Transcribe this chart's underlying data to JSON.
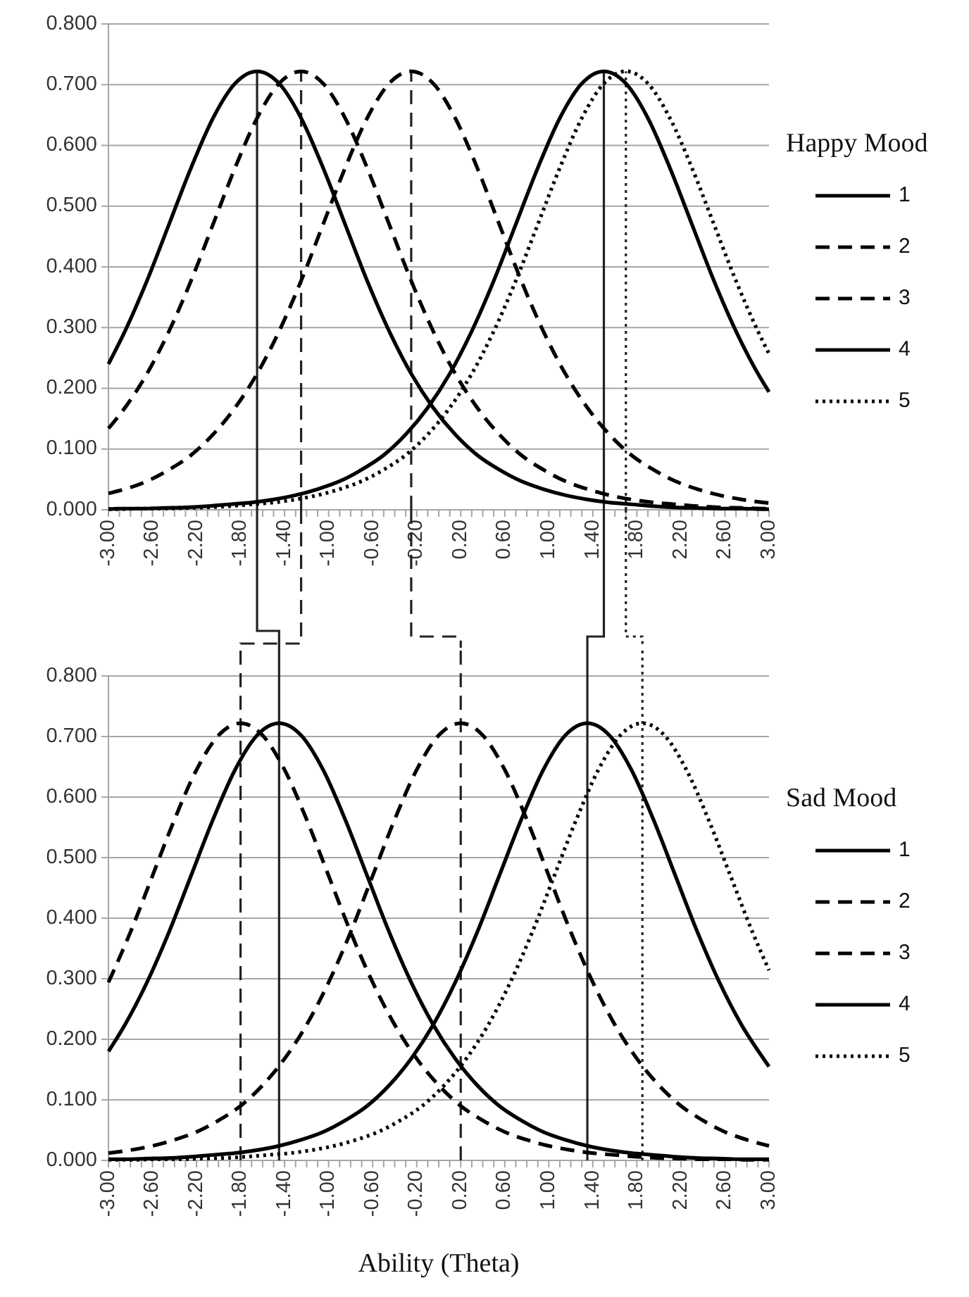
{
  "chart_data": [
    {
      "type": "line",
      "legend_title": "Happy Mood",
      "legend": "right",
      "grid": "y",
      "xlim": [
        -3,
        3
      ],
      "ylim": [
        0,
        0.8
      ],
      "yticks": [
        {
          "value": 0,
          "label": "0.000"
        },
        {
          "value": 0.1,
          "label": "0.100"
        },
        {
          "value": 0.2,
          "label": "0.200"
        },
        {
          "value": 0.3,
          "label": "0.300"
        },
        {
          "value": 0.4,
          "label": "0.400"
        },
        {
          "value": 0.5,
          "label": "0.500"
        },
        {
          "value": 0.6,
          "label": "0.600"
        },
        {
          "value": 0.7,
          "label": "0.700"
        },
        {
          "value": 0.8,
          "label": "0.800"
        }
      ],
      "xticks": [
        {
          "value": -3,
          "label": "-3.00"
        },
        {
          "value": -2.9,
          "label": null
        },
        {
          "value": -2.8,
          "label": null
        },
        {
          "value": -2.7,
          "label": null
        },
        {
          "value": -2.6,
          "label": "-2.60"
        },
        {
          "value": -2.5,
          "label": null
        },
        {
          "value": -2.4,
          "label": null
        },
        {
          "value": -2.3,
          "label": null
        },
        {
          "value": -2.2,
          "label": "-2.20"
        },
        {
          "value": -2.1,
          "label": null
        },
        {
          "value": -2,
          "label": null
        },
        {
          "value": -1.9,
          "label": null
        },
        {
          "value": -1.8,
          "label": "-1.80"
        },
        {
          "value": -1.7,
          "label": null
        },
        {
          "value": -1.6,
          "label": null
        },
        {
          "value": -1.5,
          "label": null
        },
        {
          "value": -1.4,
          "label": "-1.40"
        },
        {
          "value": -1.3,
          "label": null
        },
        {
          "value": -1.2,
          "label": null
        },
        {
          "value": -1.1,
          "label": null
        },
        {
          "value": -1,
          "label": "-1.00"
        },
        {
          "value": -0.9,
          "label": null
        },
        {
          "value": -0.8,
          "label": null
        },
        {
          "value": -0.7,
          "label": null
        },
        {
          "value": -0.6,
          "label": "-0.60"
        },
        {
          "value": -0.5,
          "label": null
        },
        {
          "value": -0.4,
          "label": null
        },
        {
          "value": -0.3,
          "label": null
        },
        {
          "value": -0.2,
          "label": "-0.20"
        },
        {
          "value": -0.1,
          "label": null
        },
        {
          "value": 0,
          "label": null
        },
        {
          "value": 0.1,
          "label": null
        },
        {
          "value": 0.2,
          "label": "0.20"
        },
        {
          "value": 0.3,
          "label": null
        },
        {
          "value": 0.4,
          "label": null
        },
        {
          "value": 0.5,
          "label": null
        },
        {
          "value": 0.6,
          "label": "0.60"
        },
        {
          "value": 0.7,
          "label": null
        },
        {
          "value": 0.8,
          "label": null
        },
        {
          "value": 0.9,
          "label": null
        },
        {
          "value": 1,
          "label": "1.00"
        },
        {
          "value": 1.1,
          "label": null
        },
        {
          "value": 1.2,
          "label": null
        },
        {
          "value": 1.3,
          "label": null
        },
        {
          "value": 1.4,
          "label": "1.40"
        },
        {
          "value": 1.5,
          "label": null
        },
        {
          "value": 1.6,
          "label": null
        },
        {
          "value": 1.7,
          "label": null
        },
        {
          "value": 1.8,
          "label": "1.80"
        },
        {
          "value": 1.9,
          "label": null
        },
        {
          "value": 2,
          "label": null
        },
        {
          "value": 2.1,
          "label": null
        },
        {
          "value": 2.2,
          "label": "2.20"
        },
        {
          "value": 2.3,
          "label": null
        },
        {
          "value": 2.4,
          "label": null
        },
        {
          "value": 2.5,
          "label": null
        },
        {
          "value": 2.6,
          "label": "2.60"
        },
        {
          "value": 2.7,
          "label": null
        },
        {
          "value": 2.8,
          "label": null
        },
        {
          "value": 2.9,
          "label": null
        },
        {
          "value": 3,
          "label": "3.00"
        }
      ],
      "series": [
        {
          "name": "1",
          "color": "#000000",
          "line_style": "solid",
          "x": [
            -3,
            -2.85,
            -2.65,
            -2.45,
            -2.25,
            -2.05,
            -1.85,
            -1.65,
            -1.45,
            -1.25,
            -1.05,
            -0.85,
            -0.65,
            -0.45,
            -0.25,
            -0.05,
            0.15,
            0.35,
            0.55,
            0.75,
            0.95,
            1.15,
            1.35,
            1.55,
            1.75,
            1.95,
            2.15,
            2.35,
            2.55,
            2.75,
            2.95,
            3
          ],
          "values": [
            0.24,
            0.294,
            0.377,
            0.47,
            0.563,
            0.645,
            0.702,
            0.722,
            0.702,
            0.645,
            0.563,
            0.47,
            0.377,
            0.294,
            0.224,
            0.168,
            0.124,
            0.09,
            0.066,
            0.047,
            0.034,
            0.024,
            0.017,
            0.012,
            0.009,
            0.006,
            0.004,
            0.003,
            0.002,
            0.002,
            0.001,
            0.001
          ]
        },
        {
          "name": "2",
          "color": "#000000",
          "line_style": "dashed",
          "x": [
            -3,
            -2.85,
            -2.65,
            -2.45,
            -2.25,
            -2.05,
            -1.85,
            -1.65,
            -1.45,
            -1.25,
            -1.05,
            -0.85,
            -0.65,
            -0.45,
            -0.25,
            -0.05,
            0.15,
            0.35,
            0.55,
            0.75,
            0.95,
            1.15,
            1.35,
            1.55,
            1.75,
            1.95,
            2.15,
            2.35,
            2.55,
            2.75,
            2.95,
            3
          ],
          "values": [
            0.134,
            0.168,
            0.224,
            0.294,
            0.377,
            0.47,
            0.563,
            0.645,
            0.702,
            0.722,
            0.702,
            0.645,
            0.563,
            0.47,
            0.377,
            0.294,
            0.224,
            0.168,
            0.124,
            0.09,
            0.066,
            0.047,
            0.034,
            0.024,
            0.017,
            0.012,
            0.009,
            0.006,
            0.004,
            0.003,
            0.002,
            0.002
          ]
        },
        {
          "name": "3",
          "color": "#000000",
          "line_style": "dashed",
          "x": [
            -3,
            -2.85,
            -2.65,
            -2.45,
            -2.25,
            -2.05,
            -1.85,
            -1.65,
            -1.45,
            -1.25,
            -1.05,
            -0.85,
            -0.65,
            -0.45,
            -0.25,
            -0.05,
            0.15,
            0.35,
            0.55,
            0.75,
            0.95,
            1.15,
            1.35,
            1.55,
            1.75,
            1.95,
            2.15,
            2.35,
            2.55,
            2.75,
            2.95,
            3
          ],
          "values": [
            0.027,
            0.034,
            0.047,
            0.066,
            0.09,
            0.124,
            0.168,
            0.224,
            0.294,
            0.377,
            0.47,
            0.563,
            0.645,
            0.702,
            0.722,
            0.702,
            0.645,
            0.563,
            0.47,
            0.377,
            0.294,
            0.224,
            0.168,
            0.124,
            0.09,
            0.066,
            0.047,
            0.034,
            0.024,
            0.017,
            0.012,
            0.011
          ]
        },
        {
          "name": "4",
          "color": "#000000",
          "line_style": "solid",
          "x": [
            -3,
            -2.9,
            -2.7,
            -2.5,
            -2.3,
            -2.1,
            -1.9,
            -1.7,
            -1.5,
            -1.3,
            -1.1,
            -0.9,
            -0.7,
            -0.5,
            -0.3,
            -0.1,
            0.1,
            0.3,
            0.5,
            0.7,
            0.9,
            1.1,
            1.3,
            1.5,
            1.7,
            1.9,
            2.1,
            2.3,
            2.5,
            2.7,
            2.9,
            3
          ],
          "values": [
            0.001,
            0.002,
            0.002,
            0.003,
            0.004,
            0.006,
            0.009,
            0.012,
            0.017,
            0.024,
            0.034,
            0.047,
            0.066,
            0.09,
            0.124,
            0.168,
            0.224,
            0.294,
            0.377,
            0.47,
            0.563,
            0.645,
            0.702,
            0.722,
            0.702,
            0.645,
            0.563,
            0.47,
            0.377,
            0.294,
            0.224,
            0.194
          ]
        },
        {
          "name": "5",
          "color": "#000000",
          "line_style": "dotted",
          "x": [
            -3,
            -2.9,
            -2.7,
            -2.5,
            -2.3,
            -2.1,
            -1.9,
            -1.7,
            -1.5,
            -1.3,
            -1.1,
            -0.9,
            -0.7,
            -0.5,
            -0.3,
            -0.1,
            0.1,
            0.3,
            0.5,
            0.7,
            0.9,
            1.1,
            1.3,
            1.5,
            1.7,
            1.9,
            2.1,
            2.3,
            2.5,
            2.7,
            2.9,
            3
          ],
          "values": [
            0.001,
            0.001,
            0.002,
            0.002,
            0.003,
            0.004,
            0.006,
            0.009,
            0.012,
            0.017,
            0.024,
            0.034,
            0.047,
            0.066,
            0.09,
            0.124,
            0.168,
            0.224,
            0.294,
            0.377,
            0.47,
            0.563,
            0.645,
            0.702,
            0.722,
            0.702,
            0.645,
            0.563,
            0.47,
            0.377,
            0.294,
            0.257
          ]
        }
      ],
      "ref_lines": [
        {
          "axis": "x",
          "value": -1.65,
          "line_style": "solid"
        },
        {
          "axis": "x",
          "value": -1.25,
          "line_style": "dashed"
        },
        {
          "axis": "x",
          "value": -0.25,
          "line_style": "dashed"
        },
        {
          "axis": "x",
          "value": 1.5,
          "line_style": "solid"
        },
        {
          "axis": "x",
          "value": 1.7,
          "line_style": "dotted"
        }
      ]
    },
    {
      "type": "line",
      "legend_title": "Sad Mood",
      "legend": "right",
      "grid": "y",
      "xlabel": "Ability (Theta)",
      "xlim": [
        -3,
        3
      ],
      "ylim": [
        0,
        0.8
      ],
      "yticks": [
        {
          "value": 0,
          "label": "0.000"
        },
        {
          "value": 0.1,
          "label": "0.100"
        },
        {
          "value": 0.2,
          "label": "0.200"
        },
        {
          "value": 0.3,
          "label": "0.300"
        },
        {
          "value": 0.4,
          "label": "0.400"
        },
        {
          "value": 0.5,
          "label": "0.500"
        },
        {
          "value": 0.6,
          "label": "0.600"
        },
        {
          "value": 0.7,
          "label": "0.700"
        },
        {
          "value": 0.8,
          "label": "0.800"
        }
      ],
      "xticks": [
        {
          "value": -3,
          "label": "-3.00"
        },
        {
          "value": -2.9,
          "label": null
        },
        {
          "value": -2.8,
          "label": null
        },
        {
          "value": -2.7,
          "label": null
        },
        {
          "value": -2.6,
          "label": "-2.60"
        },
        {
          "value": -2.5,
          "label": null
        },
        {
          "value": -2.4,
          "label": null
        },
        {
          "value": -2.3,
          "label": null
        },
        {
          "value": -2.2,
          "label": "-2.20"
        },
        {
          "value": -2.1,
          "label": null
        },
        {
          "value": -2,
          "label": null
        },
        {
          "value": -1.9,
          "label": null
        },
        {
          "value": -1.8,
          "label": "-1.80"
        },
        {
          "value": -1.7,
          "label": null
        },
        {
          "value": -1.6,
          "label": null
        },
        {
          "value": -1.5,
          "label": null
        },
        {
          "value": -1.4,
          "label": "-1.40"
        },
        {
          "value": -1.3,
          "label": null
        },
        {
          "value": -1.2,
          "label": null
        },
        {
          "value": -1.1,
          "label": null
        },
        {
          "value": -1,
          "label": "-1.00"
        },
        {
          "value": -0.9,
          "label": null
        },
        {
          "value": -0.8,
          "label": null
        },
        {
          "value": -0.7,
          "label": null
        },
        {
          "value": -0.6,
          "label": "-0.60"
        },
        {
          "value": -0.5,
          "label": null
        },
        {
          "value": -0.4,
          "label": null
        },
        {
          "value": -0.3,
          "label": null
        },
        {
          "value": -0.2,
          "label": "-0.20"
        },
        {
          "value": -0.1,
          "label": null
        },
        {
          "value": 0,
          "label": null
        },
        {
          "value": 0.1,
          "label": null
        },
        {
          "value": 0.2,
          "label": "0.20"
        },
        {
          "value": 0.3,
          "label": null
        },
        {
          "value": 0.4,
          "label": null
        },
        {
          "value": 0.5,
          "label": null
        },
        {
          "value": 0.6,
          "label": "0.60"
        },
        {
          "value": 0.7,
          "label": null
        },
        {
          "value": 0.8,
          "label": null
        },
        {
          "value": 0.9,
          "label": null
        },
        {
          "value": 1,
          "label": "1.00"
        },
        {
          "value": 1.1,
          "label": null
        },
        {
          "value": 1.2,
          "label": null
        },
        {
          "value": 1.3,
          "label": null
        },
        {
          "value": 1.4,
          "label": "1.40"
        },
        {
          "value": 1.5,
          "label": null
        },
        {
          "value": 1.6,
          "label": null
        },
        {
          "value": 1.7,
          "label": null
        },
        {
          "value": 1.8,
          "label": "1.80"
        },
        {
          "value": 1.9,
          "label": null
        },
        {
          "value": 2,
          "label": null
        },
        {
          "value": 2.1,
          "label": null
        },
        {
          "value": 2.2,
          "label": "2.20"
        },
        {
          "value": 2.3,
          "label": null
        },
        {
          "value": 2.4,
          "label": null
        },
        {
          "value": 2.5,
          "label": null
        },
        {
          "value": 2.6,
          "label": "2.60"
        },
        {
          "value": 2.7,
          "label": null
        },
        {
          "value": 2.8,
          "label": null
        },
        {
          "value": 2.9,
          "label": null
        },
        {
          "value": 3,
          "label": "3.00"
        }
      ],
      "series": [
        {
          "name": "1",
          "color": "#000000",
          "line_style": "solid",
          "x": [
            -3,
            -2.85,
            -2.65,
            -2.45,
            -2.25,
            -2.05,
            -1.85,
            -1.65,
            -1.45,
            -1.25,
            -1.05,
            -0.85,
            -0.65,
            -0.45,
            -0.25,
            -0.05,
            0.15,
            0.35,
            0.55,
            0.75,
            0.95,
            1.15,
            1.35,
            1.55,
            1.75,
            1.95,
            2.15,
            2.35,
            2.55,
            2.75,
            2.95,
            3
          ],
          "values": [
            0.18,
            0.224,
            0.294,
            0.377,
            0.47,
            0.563,
            0.645,
            0.702,
            0.722,
            0.702,
            0.645,
            0.563,
            0.47,
            0.377,
            0.294,
            0.224,
            0.168,
            0.124,
            0.09,
            0.066,
            0.047,
            0.034,
            0.024,
            0.017,
            0.012,
            0.009,
            0.006,
            0.004,
            0.003,
            0.002,
            0.002,
            0.002
          ]
        },
        {
          "name": "2",
          "color": "#000000",
          "line_style": "dashed",
          "x": [
            -3,
            -2.8,
            -2.6,
            -2.4,
            -2.2,
            -2,
            -1.8,
            -1.6,
            -1.4,
            -1.2,
            -1,
            -0.8,
            -0.6,
            -0.4,
            -0.2,
            0,
            0.2,
            0.4,
            0.6,
            0.8,
            1,
            1.2,
            1.4,
            1.6,
            1.8,
            2,
            2.2,
            2.4,
            2.6,
            2.8,
            3
          ],
          "values": [
            0.294,
            0.377,
            0.47,
            0.563,
            0.645,
            0.702,
            0.722,
            0.702,
            0.645,
            0.563,
            0.47,
            0.377,
            0.294,
            0.224,
            0.168,
            0.124,
            0.09,
            0.066,
            0.047,
            0.034,
            0.024,
            0.017,
            0.012,
            0.009,
            0.006,
            0.004,
            0.003,
            0.002,
            0.002,
            0.001,
            0.001
          ]
        },
        {
          "name": "3",
          "color": "#000000",
          "line_style": "dashed",
          "x": [
            -3,
            -2.8,
            -2.6,
            -2.4,
            -2.2,
            -2,
            -1.8,
            -1.6,
            -1.4,
            -1.2,
            -1,
            -0.8,
            -0.6,
            -0.4,
            -0.2,
            0,
            0.2,
            0.4,
            0.6,
            0.8,
            1,
            1.2,
            1.4,
            1.6,
            1.8,
            2,
            2.2,
            2.4,
            2.6,
            2.8,
            3
          ],
          "values": [
            0.012,
            0.017,
            0.024,
            0.034,
            0.047,
            0.066,
            0.09,
            0.124,
            0.168,
            0.224,
            0.294,
            0.377,
            0.47,
            0.563,
            0.645,
            0.702,
            0.722,
            0.702,
            0.645,
            0.563,
            0.47,
            0.377,
            0.294,
            0.224,
            0.168,
            0.124,
            0.09,
            0.066,
            0.047,
            0.034,
            0.024
          ]
        },
        {
          "name": "4",
          "color": "#000000",
          "line_style": "solid",
          "x": [
            -3,
            -2.85,
            -2.65,
            -2.45,
            -2.25,
            -2.05,
            -1.85,
            -1.65,
            -1.45,
            -1.25,
            -1.05,
            -0.85,
            -0.65,
            -0.45,
            -0.25,
            -0.05,
            0.15,
            0.35,
            0.55,
            0.75,
            0.95,
            1.15,
            1.35,
            1.55,
            1.75,
            1.95,
            2.15,
            2.35,
            2.55,
            2.75,
            2.95,
            3
          ],
          "values": [
            0.002,
            0.002,
            0.003,
            0.004,
            0.006,
            0.009,
            0.012,
            0.017,
            0.024,
            0.034,
            0.047,
            0.066,
            0.09,
            0.124,
            0.168,
            0.224,
            0.294,
            0.377,
            0.47,
            0.563,
            0.645,
            0.702,
            0.722,
            0.702,
            0.645,
            0.563,
            0.47,
            0.377,
            0.294,
            0.224,
            0.168,
            0.155
          ]
        },
        {
          "name": "5",
          "color": "#000000",
          "line_style": "dotted",
          "x": [
            -3,
            -2.95,
            -2.75,
            -2.55,
            -2.35,
            -2.15,
            -1.95,
            -1.75,
            -1.55,
            -1.35,
            -1.15,
            -0.95,
            -0.75,
            -0.55,
            -0.35,
            -0.15,
            0.05,
            0.25,
            0.45,
            0.65,
            0.85,
            1.05,
            1.25,
            1.45,
            1.65,
            1.85,
            2.05,
            2.25,
            2.45,
            2.65,
            2.85,
            3
          ],
          "values": [
            0.001,
            0.001,
            0.001,
            0.002,
            0.002,
            0.003,
            0.004,
            0.006,
            0.009,
            0.012,
            0.017,
            0.024,
            0.034,
            0.047,
            0.066,
            0.09,
            0.124,
            0.168,
            0.224,
            0.294,
            0.377,
            0.47,
            0.563,
            0.645,
            0.702,
            0.722,
            0.702,
            0.645,
            0.563,
            0.47,
            0.377,
            0.314
          ]
        }
      ],
      "ref_lines": [
        {
          "axis": "x",
          "value": -1.45,
          "line_style": "solid"
        },
        {
          "axis": "x",
          "value": -1.8,
          "line_style": "dashed"
        },
        {
          "axis": "x",
          "value": 0.2,
          "line_style": "dashed"
        },
        {
          "axis": "x",
          "value": 1.35,
          "line_style": "solid"
        },
        {
          "axis": "x",
          "value": 1.85,
          "line_style": "dotted"
        }
      ]
    }
  ]
}
